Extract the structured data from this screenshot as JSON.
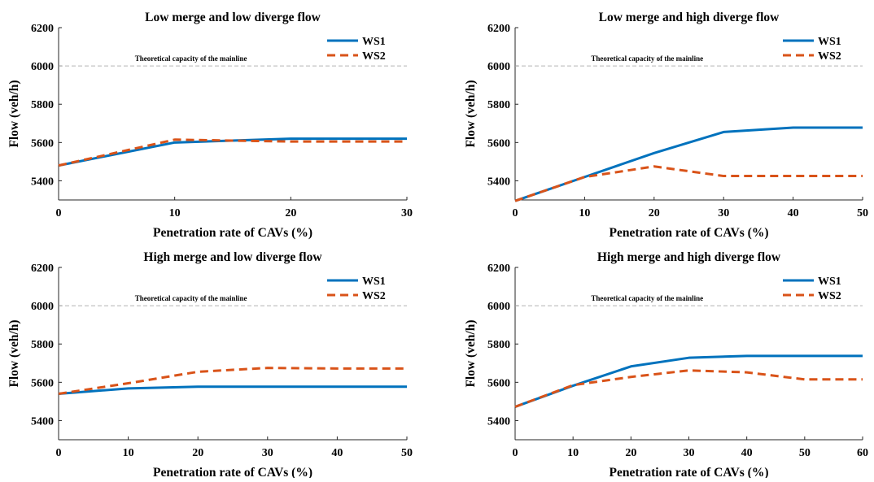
{
  "chart_data": [
    {
      "type": "line",
      "title": "Low merge and low diverge flow",
      "xlabel": "Penetration rate of CAVs (%)",
      "ylabel": "Flow (veh/h)",
      "xlim": [
        0,
        30
      ],
      "ylim": [
        5300,
        6200
      ],
      "xticks": [
        "0",
        "10",
        "20",
        "30"
      ],
      "yticks": [
        "5400",
        "5600",
        "5800",
        "6000",
        "6200"
      ],
      "legend": "top-right",
      "grid": false,
      "reference_line": {
        "y": 6000,
        "label": "Theoretical capacity of the mainline"
      },
      "series": [
        {
          "name": "WS1",
          "x": [
            0,
            10,
            20,
            30
          ],
          "values": [
            5480,
            5600,
            5620,
            5620
          ]
        },
        {
          "name": "WS2",
          "x": [
            0,
            10,
            20,
            30
          ],
          "values": [
            5480,
            5615,
            5605,
            5605
          ]
        }
      ]
    },
    {
      "type": "line",
      "title": "Low merge and high diverge flow",
      "xlabel": "Penetration rate of CAVs (%)",
      "ylabel": "Flow (veh/h)",
      "xlim": [
        0,
        50
      ],
      "ylim": [
        5300,
        6200
      ],
      "xticks": [
        "0",
        "10",
        "20",
        "30",
        "40",
        "50"
      ],
      "yticks": [
        "5400",
        "5600",
        "5800",
        "6000",
        "6200"
      ],
      "legend": "top-right",
      "grid": false,
      "reference_line": {
        "y": 6000,
        "label": "Theoretical capacity of the mainline"
      },
      "series": [
        {
          "name": "WS1",
          "x": [
            0,
            10,
            20,
            30,
            40,
            50
          ],
          "values": [
            5295,
            5420,
            5545,
            5655,
            5678,
            5678
          ]
        },
        {
          "name": "WS2",
          "x": [
            0,
            10,
            20,
            30,
            40,
            50
          ],
          "values": [
            5295,
            5420,
            5475,
            5425,
            5425,
            5425
          ]
        }
      ]
    },
    {
      "type": "line",
      "title": "High merge and low diverge flow",
      "xlabel": "Penetration rate of CAVs (%)",
      "ylabel": "Flow (veh/h)",
      "xlim": [
        0,
        50
      ],
      "ylim": [
        5300,
        6200
      ],
      "xticks": [
        "0",
        "10",
        "20",
        "30",
        "40",
        "50"
      ],
      "yticks": [
        "5400",
        "5600",
        "5800",
        "6000",
        "6200"
      ],
      "legend": "top-right",
      "grid": false,
      "reference_line": {
        "y": 6000,
        "label": "Theoretical capacity of the mainline"
      },
      "series": [
        {
          "name": "WS1",
          "x": [
            0,
            10,
            20,
            30,
            40,
            50
          ],
          "values": [
            5540,
            5568,
            5577,
            5577,
            5577,
            5577
          ]
        },
        {
          "name": "WS2",
          "x": [
            0,
            10,
            20,
            30,
            40,
            50
          ],
          "values": [
            5540,
            5595,
            5655,
            5675,
            5672,
            5672
          ]
        }
      ]
    },
    {
      "type": "line",
      "title": "High merge and high diverge flow",
      "xlabel": "Penetration rate of CAVs (%)",
      "ylabel": "Flow (veh/h)",
      "xlim": [
        0,
        60
      ],
      "ylim": [
        5300,
        6200
      ],
      "xticks": [
        "0",
        "10",
        "20",
        "30",
        "40",
        "50",
        "60"
      ],
      "yticks": [
        "5400",
        "5600",
        "5800",
        "6000",
        "6200"
      ],
      "legend": "top-right",
      "grid": false,
      "reference_line": {
        "y": 6000,
        "label": "Theoretical capacity of the mainline"
      },
      "series": [
        {
          "name": "WS1",
          "x": [
            0,
            10,
            20,
            30,
            40,
            50,
            60
          ],
          "values": [
            5472,
            5582,
            5683,
            5728,
            5738,
            5738,
            5738
          ]
        },
        {
          "name": "WS2",
          "x": [
            0,
            10,
            20,
            30,
            40,
            50,
            60
          ],
          "values": [
            5472,
            5585,
            5628,
            5662,
            5652,
            5615,
            5615
          ]
        }
      ]
    }
  ],
  "series_colors": {
    "WS1": "#0072BD",
    "WS2": "#D95319"
  },
  "reference_color": "#b4b4b4",
  "series_styles": {
    "WS1": "solid",
    "WS2": "dashed"
  }
}
